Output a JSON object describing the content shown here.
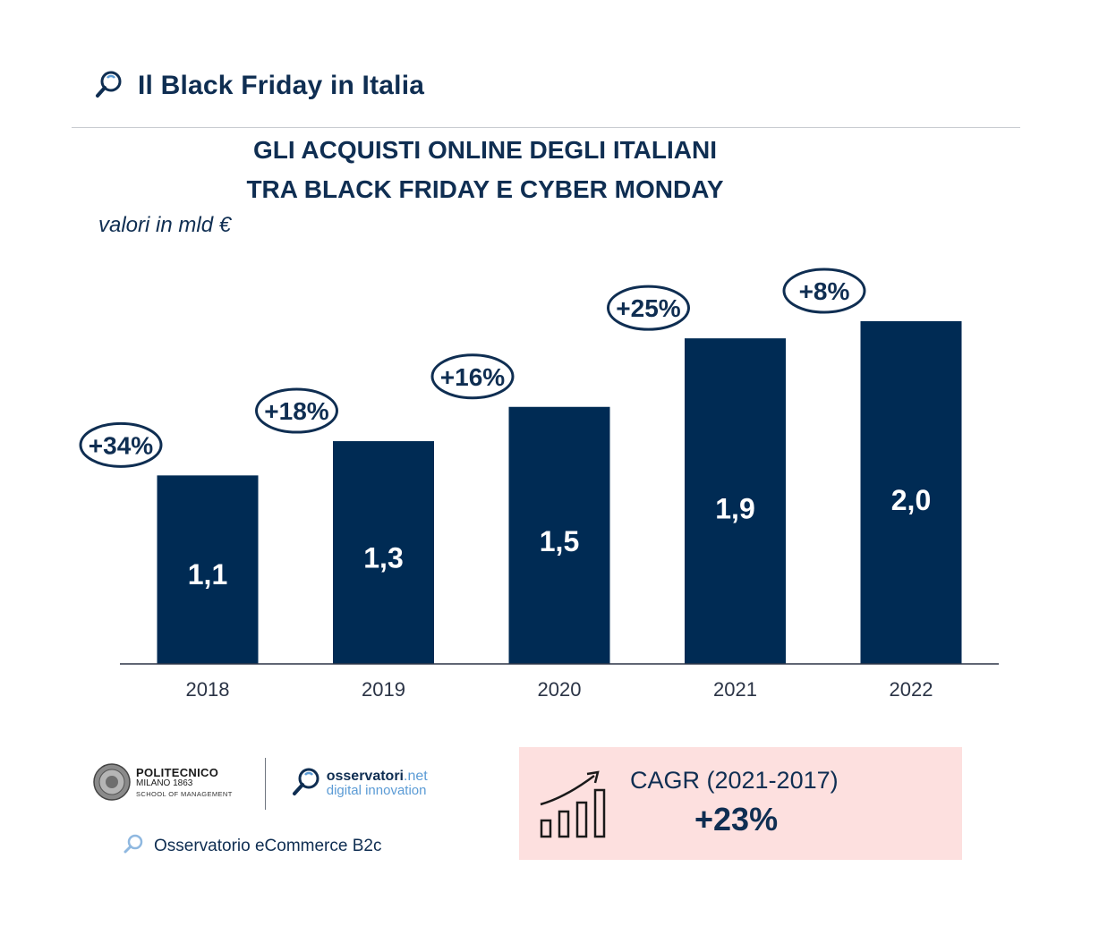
{
  "header": {
    "title": "Il Black Friday in Italia"
  },
  "chart_title_line1": "GLI ACQUISTI ONLINE DEGLI ITALIANI",
  "chart_title_line2": "TRA BLACK FRIDAY E CYBER MONDAY",
  "subtitle": "valori in mld €",
  "chart_data": {
    "type": "bar",
    "title": "GLI ACQUISTI ONLINE DEGLI ITALIANI TRA BLACK FRIDAY E CYBER MONDAY",
    "ylabel": "valori in mld €",
    "categories": [
      "2018",
      "2019",
      "2020",
      "2021",
      "2022"
    ],
    "values": [
      1.1,
      1.3,
      1.5,
      1.9,
      2.0
    ],
    "value_labels": [
      "1,1",
      "1,3",
      "1,5",
      "1,9",
      "2,0"
    ],
    "growth_labels": [
      "+34%",
      "+18%",
      "+16%",
      "+25%",
      "+8%"
    ],
    "bar_color": "#002b54",
    "grid": false
  },
  "logos": {
    "polimi_name": "POLITECNICO",
    "polimi_city": "MILANO 1863",
    "polimi_school": "SCHOOL OF MANAGEMENT",
    "osservatori_name": "osservatori",
    "osservatori_tld": ".net",
    "osservatori_tagline": "digital innovation"
  },
  "footer": {
    "observatory": "Osservatorio eCommerce B2c"
  },
  "cagr": {
    "label": "CAGR (2021-2017)",
    "value": "+23%",
    "box_color": "#fde0df"
  }
}
